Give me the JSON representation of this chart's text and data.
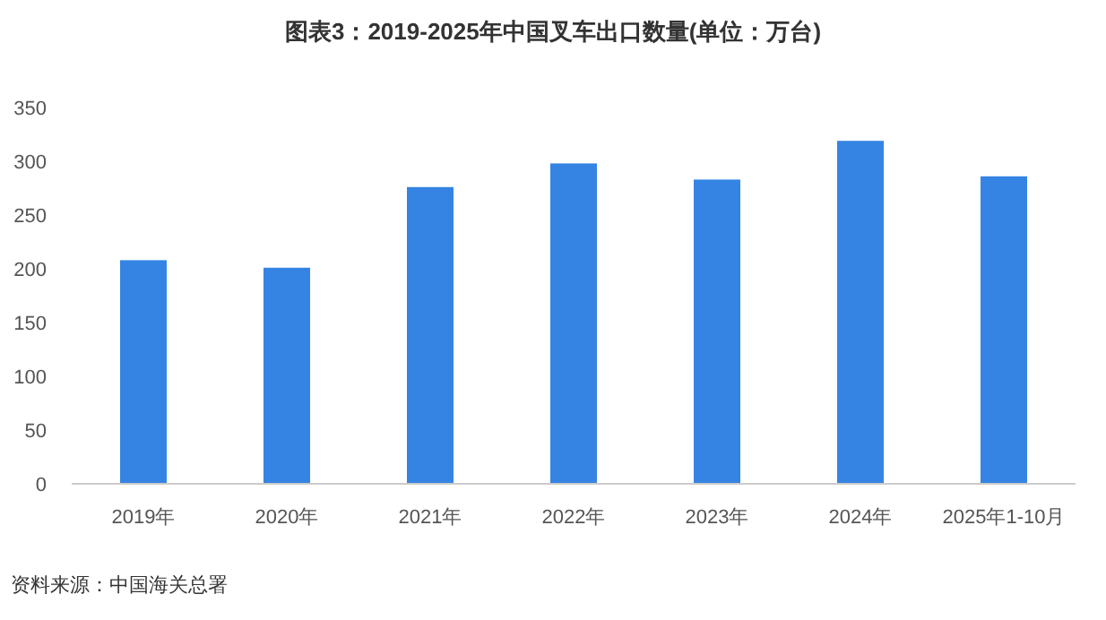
{
  "chart_data": {
    "type": "bar",
    "title": "图表3：2019-2025年中国叉车出口数量(单位：万台)",
    "categories": [
      "2019年",
      "2020年",
      "2021年",
      "2022年",
      "2023年",
      "2024年",
      "2025年1-10月"
    ],
    "values": [
      208,
      201,
      276,
      298,
      283,
      319,
      286
    ],
    "color": "#3584e4",
    "ylim": [
      0,
      350
    ],
    "yticks": [
      0,
      50,
      100,
      150,
      200,
      250,
      300,
      350
    ],
    "grid": false,
    "annotations": [
      "资料来源：中国海关总署"
    ]
  }
}
